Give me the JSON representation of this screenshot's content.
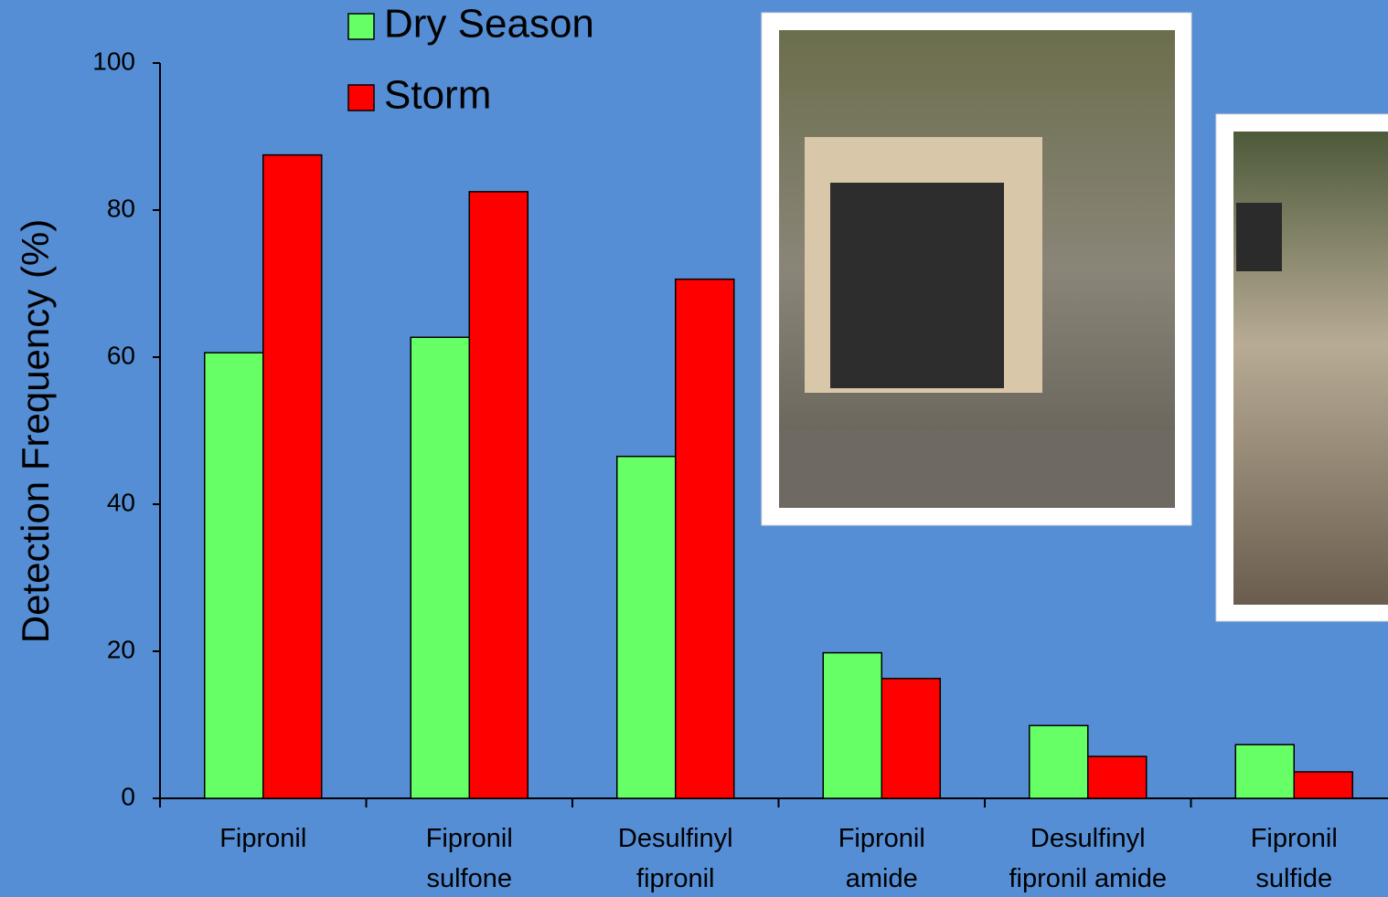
{
  "chart_data": {
    "type": "bar",
    "y_label": "Detection Frequency (%)",
    "categories": [
      "Fipronil",
      "Fipronil\nsulfone",
      "Desulfinyl\nfipronil",
      "Fipronil\namide",
      "Desulfinyl\nfipronil amide",
      "Fipronil\nsulfide"
    ],
    "series": [
      {
        "name": "Dry Season",
        "color": "#66ff66",
        "values": [
          60.6,
          62.7,
          46.5,
          19.8,
          9.9,
          7.3
        ]
      },
      {
        "name": "Storm",
        "color": "#ff0000",
        "values": [
          87.5,
          82.5,
          70.6,
          16.3,
          5.7,
          3.6
        ]
      }
    ],
    "ylim": [
      0,
      100
    ],
    "yticks": [
      0,
      20,
      40,
      60,
      80,
      100
    ],
    "grid": false
  }
}
